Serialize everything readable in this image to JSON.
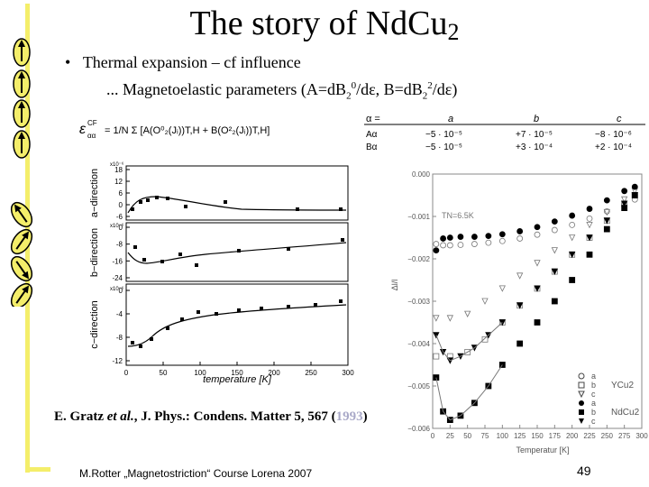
{
  "slide": {
    "title_main": "The story of NdCu",
    "title_sub": "2",
    "bullet_symbol": "•",
    "bullet_text": "Thermal expansion – cf influence",
    "subline_prefix": "... Magnetoelastic parameters (A=dB",
    "subline_s1": "2",
    "subline_p1": "0",
    "subline_mid": "/dε, B=dB",
    "subline_s2": "2",
    "subline_p2": "2",
    "subline_suffix": "/dε)",
    "reference_prefix": "E. Gratz ",
    "reference_etal": "et al.",
    "reference_rest": ", J. Phys.: Condens. Matter 5, 567 (",
    "reference_year": "1993",
    "reference_close": ")",
    "footer": "M.Rotter „Magnetostriction“ Course Lorena 2007",
    "page_number": "49"
  },
  "left_figure": {
    "formula_lhs": "ε",
    "formula_sup": "CF",
    "formula_sub": "αα",
    "formula_rhs": "= 1/N Σ [A(O⁰₂(Jᵢ))T,H + B(O²₂(Jᵢ))T,H]",
    "panel_labels": [
      "a−direction",
      "b−direction",
      "c−direction"
    ],
    "a_ticks": [
      "18",
      "12",
      "6",
      "0",
      "-6"
    ],
    "b_ticks": [
      "0",
      "-8",
      "-16",
      "-24"
    ],
    "c_ticks": [
      "0",
      "-4",
      "-8",
      "-12"
    ],
    "scale_label": "x10⁻⁶",
    "x_ticks": [
      "0",
      "50",
      "100",
      "150",
      "200",
      "250",
      "300"
    ],
    "xlabel": "temperature [K]"
  },
  "table": {
    "header": [
      "α =",
      "a",
      "b",
      "c"
    ],
    "rows": [
      [
        "Aα",
        "−5 · 10⁻⁵",
        "+7 · 10⁻⁵",
        "−8 · 10⁻⁶"
      ],
      [
        "Bα",
        "−5 · 10⁻⁵",
        "+3 · 10⁻⁴",
        "+2 · 10⁻⁴"
      ]
    ]
  },
  "chart_data": {
    "type": "scatter",
    "annotation": "TN=6.5K",
    "ylabel": "Δl/l",
    "xlabel": "Temperatur [K]",
    "xlim": [
      0,
      300
    ],
    "ylim": [
      -0.006,
      0.0
    ],
    "x_ticks": [
      0,
      25,
      50,
      75,
      100,
      125,
      150,
      175,
      200,
      225,
      250,
      275,
      300
    ],
    "y_ticks": [
      "0.000",
      "−0.001",
      "−0.002",
      "−0.003",
      "−0.004",
      "−0.005",
      "−0.006"
    ],
    "legend_groups": [
      {
        "label": "YCu2",
        "items": [
          "a",
          "b",
          "c"
        ]
      },
      {
        "label": "NdCu2",
        "items": [
          "a",
          "b",
          "c"
        ]
      }
    ],
    "series": [
      {
        "name": "YCu2 a",
        "marker": "open-circle",
        "x": [
          5,
          15,
          25,
          40,
          60,
          80,
          100,
          125,
          150,
          175,
          200,
          225,
          250,
          275,
          290
        ],
        "y": [
          -0.00165,
          -0.00168,
          -0.00168,
          -0.00167,
          -0.00165,
          -0.00162,
          -0.00158,
          -0.00152,
          -0.00143,
          -0.00132,
          -0.0012,
          -0.00105,
          -0.00088,
          -0.0007,
          -0.0006
        ]
      },
      {
        "name": "YCu2 b",
        "marker": "open-square",
        "x": [
          5,
          25,
          50,
          75,
          100,
          125,
          150,
          175,
          200,
          225,
          250,
          275,
          290
        ],
        "y": [
          -0.0043,
          -0.0043,
          -0.0042,
          -0.0039,
          -0.0035,
          -0.0031,
          -0.0027,
          -0.0023,
          -0.0019,
          -0.0015,
          -0.0011,
          -0.0007,
          -0.0005
        ]
      },
      {
        "name": "YCu2 c",
        "marker": "open-triangle-down",
        "x": [
          5,
          25,
          50,
          75,
          100,
          125,
          150,
          175,
          200,
          225,
          250,
          275,
          290
        ],
        "y": [
          -0.0034,
          -0.0034,
          -0.0033,
          -0.003,
          -0.0027,
          -0.0024,
          -0.0021,
          -0.0018,
          -0.0015,
          -0.0012,
          -0.0009,
          -0.0006,
          -0.0004
        ]
      },
      {
        "name": "NdCu2 a",
        "marker": "filled-circle",
        "x": [
          5,
          15,
          25,
          40,
          60,
          80,
          100,
          125,
          150,
          175,
          200,
          225,
          250,
          275,
          290
        ],
        "y": [
          -0.0018,
          -0.00152,
          -0.0015,
          -0.00148,
          -0.00148,
          -0.00146,
          -0.00142,
          -0.00135,
          -0.00125,
          -0.00112,
          -0.00098,
          -0.00082,
          -0.00062,
          -0.0004,
          -0.0003
        ]
      },
      {
        "name": "NdCu2 b",
        "marker": "filled-square",
        "x": [
          5,
          15,
          25,
          40,
          60,
          80,
          100,
          125,
          150,
          175,
          200,
          225,
          250,
          275,
          290
        ],
        "y": [
          -0.0048,
          -0.0056,
          -0.0058,
          -0.0057,
          -0.0054,
          -0.005,
          -0.0045,
          -0.004,
          -0.0035,
          -0.003,
          -0.0025,
          -0.0019,
          -0.0013,
          -0.0008,
          -0.0005
        ]
      },
      {
        "name": "NdCu2 c",
        "marker": "filled-triangle-down",
        "x": [
          5,
          15,
          25,
          40,
          60,
          80,
          100,
          125,
          150,
          175,
          200,
          225,
          250,
          275,
          290
        ],
        "y": [
          -0.0038,
          -0.0042,
          -0.0044,
          -0.0043,
          -0.0041,
          -0.0038,
          -0.0035,
          -0.0031,
          -0.0027,
          -0.0023,
          -0.0019,
          -0.0015,
          -0.0011,
          -0.0007,
          -0.0005
        ]
      }
    ]
  }
}
